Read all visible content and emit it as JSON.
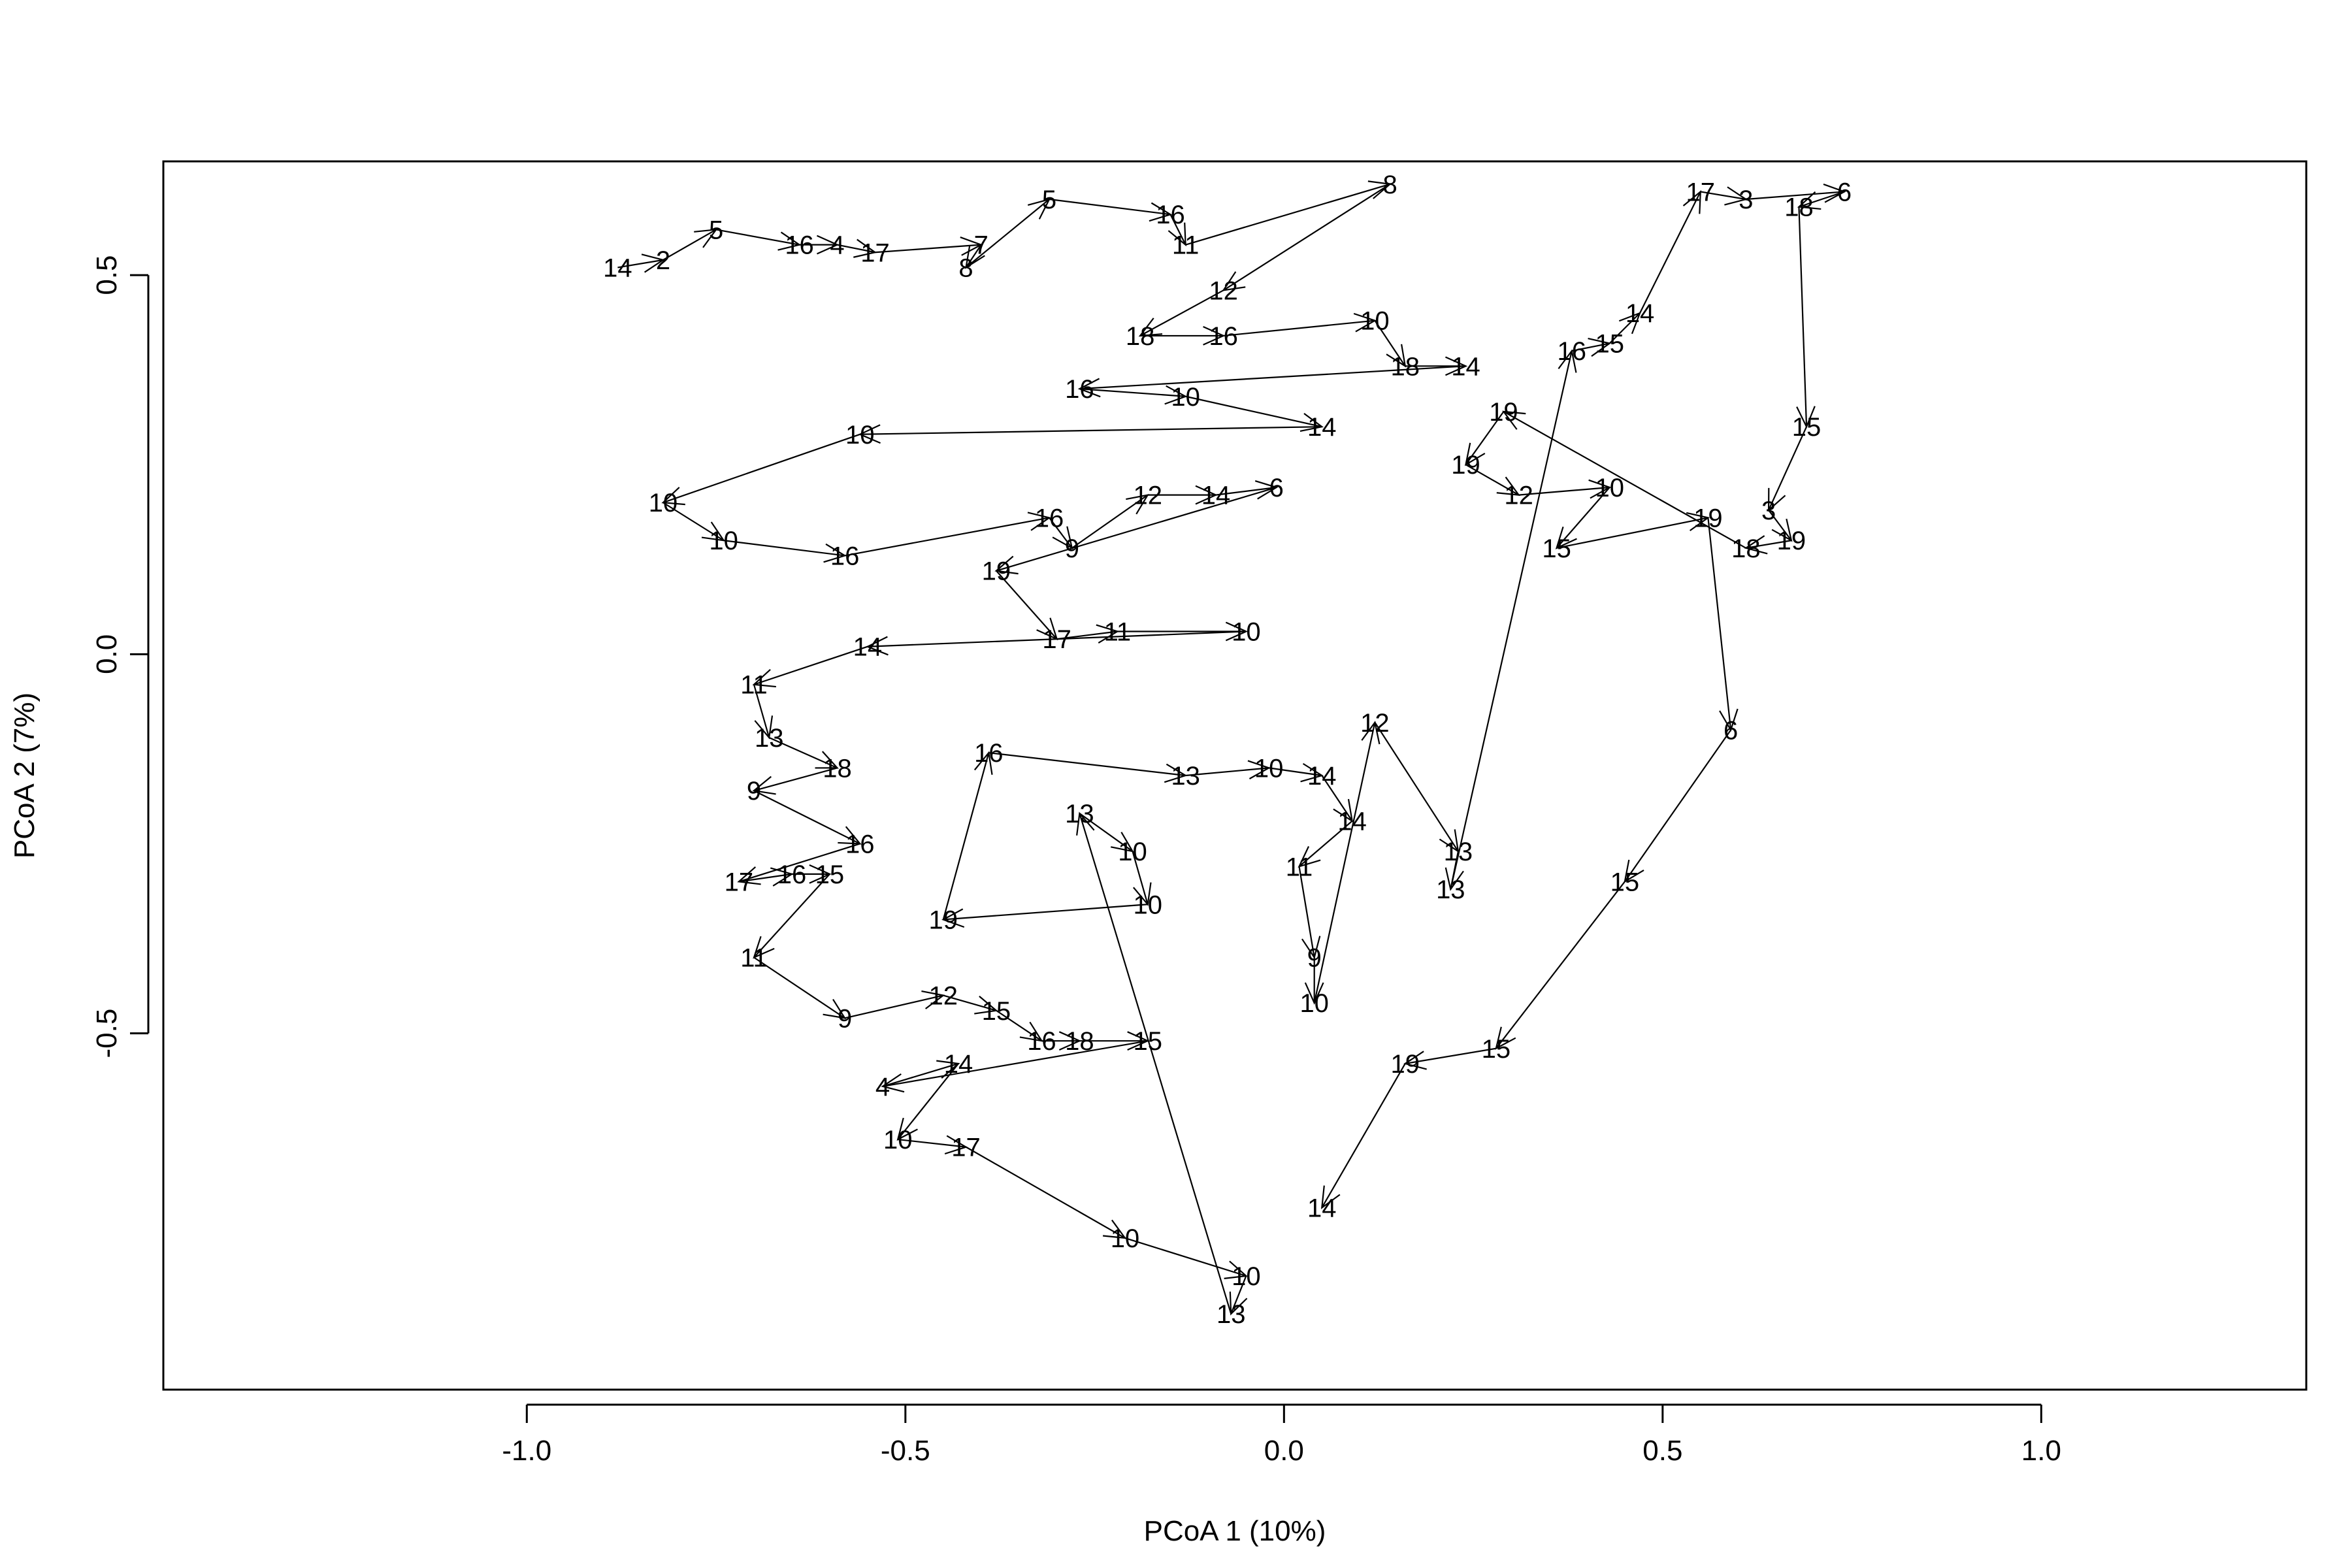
{
  "chart_data": {
    "type": "scatter",
    "title": "",
    "xlabel": "PCoA 1 (10%)",
    "ylabel": "PCoA 2 (7%)",
    "xlim": [
      -1.48,
      1.35
    ],
    "ylim": [
      -0.97,
      0.65
    ],
    "xticks": [
      -1.0,
      -0.5,
      0.0,
      0.5,
      1.0
    ],
    "xtick_labels": [
      "-1.0",
      "-0.5",
      "0.0",
      "0.5",
      "1.0"
    ],
    "yticks": [
      -0.5,
      0.0,
      0.5
    ],
    "ytick_labels": [
      "-0.5",
      "0.0",
      "0.5"
    ],
    "grid": false,
    "legend": "none",
    "marks": "sample labels joined by arrows in sequence",
    "points": [
      {
        "x": -0.88,
        "y": 0.51,
        "label": "14"
      },
      {
        "x": -0.82,
        "y": 0.52,
        "label": "2"
      },
      {
        "x": -0.75,
        "y": 0.56,
        "label": "5"
      },
      {
        "x": -0.64,
        "y": 0.54,
        "label": "16"
      },
      {
        "x": -0.59,
        "y": 0.54,
        "label": "4"
      },
      {
        "x": -0.54,
        "y": 0.53,
        "label": "17"
      },
      {
        "x": -0.4,
        "y": 0.54,
        "label": "7"
      },
      {
        "x": -0.42,
        "y": 0.51,
        "label": "8"
      },
      {
        "x": -0.31,
        "y": 0.6,
        "label": "5"
      },
      {
        "x": -0.15,
        "y": 0.58,
        "label": "16"
      },
      {
        "x": -0.13,
        "y": 0.54,
        "label": "11"
      },
      {
        "x": 0.14,
        "y": 0.62,
        "label": "8"
      },
      {
        "x": -0.08,
        "y": 0.48,
        "label": "12"
      },
      {
        "x": -0.19,
        "y": 0.42,
        "label": "18"
      },
      {
        "x": -0.08,
        "y": 0.42,
        "label": "16"
      },
      {
        "x": 0.12,
        "y": 0.44,
        "label": "10"
      },
      {
        "x": 0.16,
        "y": 0.38,
        "label": "18"
      },
      {
        "x": 0.24,
        "y": 0.38,
        "label": "14"
      },
      {
        "x": -0.27,
        "y": 0.35,
        "label": "16"
      },
      {
        "x": -0.13,
        "y": 0.34,
        "label": "10"
      },
      {
        "x": 0.05,
        "y": 0.3,
        "label": "14"
      },
      {
        "x": -0.56,
        "y": 0.29,
        "label": "10"
      },
      {
        "x": -0.82,
        "y": 0.2,
        "label": "10"
      },
      {
        "x": -0.74,
        "y": 0.15,
        "label": "10"
      },
      {
        "x": -0.58,
        "y": 0.13,
        "label": "16"
      },
      {
        "x": -0.31,
        "y": 0.18,
        "label": "16"
      },
      {
        "x": -0.28,
        "y": 0.14,
        "label": "9"
      },
      {
        "x": -0.18,
        "y": 0.21,
        "label": "12"
      },
      {
        "x": -0.09,
        "y": 0.21,
        "label": "14"
      },
      {
        "x": -0.01,
        "y": 0.22,
        "label": "6"
      },
      {
        "x": -0.38,
        "y": 0.11,
        "label": "19"
      },
      {
        "x": -0.3,
        "y": 0.02,
        "label": "17"
      },
      {
        "x": -0.22,
        "y": 0.03,
        "label": "11"
      },
      {
        "x": -0.05,
        "y": 0.03,
        "label": "10"
      },
      {
        "x": -0.55,
        "y": 0.01,
        "label": "14"
      },
      {
        "x": -0.7,
        "y": -0.04,
        "label": "11"
      },
      {
        "x": -0.68,
        "y": -0.11,
        "label": "13"
      },
      {
        "x": -0.59,
        "y": -0.15,
        "label": "18"
      },
      {
        "x": -0.7,
        "y": -0.18,
        "label": "9"
      },
      {
        "x": -0.56,
        "y": -0.25,
        "label": "16"
      },
      {
        "x": -0.72,
        "y": -0.3,
        "label": "17"
      },
      {
        "x": -0.65,
        "y": -0.29,
        "label": "16"
      },
      {
        "x": -0.6,
        "y": -0.29,
        "label": "15"
      },
      {
        "x": -0.7,
        "y": -0.4,
        "label": "11"
      },
      {
        "x": -0.58,
        "y": -0.48,
        "label": "9"
      },
      {
        "x": -0.45,
        "y": -0.45,
        "label": "12"
      },
      {
        "x": -0.38,
        "y": -0.47,
        "label": "15"
      },
      {
        "x": -0.32,
        "y": -0.51,
        "label": "16"
      },
      {
        "x": -0.27,
        "y": -0.51,
        "label": "18"
      },
      {
        "x": -0.18,
        "y": -0.51,
        "label": "15"
      },
      {
        "x": -0.53,
        "y": -0.57,
        "label": "4"
      },
      {
        "x": -0.43,
        "y": -0.54,
        "label": "14"
      },
      {
        "x": -0.51,
        "y": -0.64,
        "label": "10"
      },
      {
        "x": -0.42,
        "y": -0.65,
        "label": "17"
      },
      {
        "x": -0.21,
        "y": -0.77,
        "label": "10"
      },
      {
        "x": -0.05,
        "y": -0.82,
        "label": "10"
      },
      {
        "x": -0.07,
        "y": -0.87,
        "label": "13"
      },
      {
        "x": -0.27,
        "y": -0.21,
        "label": "13"
      },
      {
        "x": -0.2,
        "y": -0.26,
        "label": "10"
      },
      {
        "x": -0.18,
        "y": -0.33,
        "label": "10"
      },
      {
        "x": -0.45,
        "y": -0.35,
        "label": "19"
      },
      {
        "x": -0.39,
        "y": -0.13,
        "label": "16"
      },
      {
        "x": -0.13,
        "y": -0.16,
        "label": "13"
      },
      {
        "x": -0.02,
        "y": -0.15,
        "label": "10"
      },
      {
        "x": 0.05,
        "y": -0.16,
        "label": "14"
      },
      {
        "x": 0.09,
        "y": -0.22,
        "label": "14"
      },
      {
        "x": 0.02,
        "y": -0.28,
        "label": "11"
      },
      {
        "x": 0.04,
        "y": -0.4,
        "label": "9"
      },
      {
        "x": 0.04,
        "y": -0.46,
        "label": "10"
      },
      {
        "x": 0.12,
        "y": -0.09,
        "label": "12"
      },
      {
        "x": 0.23,
        "y": -0.26,
        "label": "13"
      },
      {
        "x": 0.22,
        "y": -0.31,
        "label": "13"
      },
      {
        "x": 0.38,
        "y": 0.4,
        "label": "16"
      },
      {
        "x": 0.43,
        "y": 0.41,
        "label": "15"
      },
      {
        "x": 0.47,
        "y": 0.45,
        "label": "14"
      },
      {
        "x": 0.55,
        "y": 0.61,
        "label": "17"
      },
      {
        "x": 0.61,
        "y": 0.6,
        "label": "3"
      },
      {
        "x": 0.74,
        "y": 0.61,
        "label": "6"
      },
      {
        "x": 0.68,
        "y": 0.59,
        "label": "18"
      },
      {
        "x": 0.69,
        "y": 0.3,
        "label": "15"
      },
      {
        "x": 0.64,
        "y": 0.19,
        "label": "3"
      },
      {
        "x": 0.67,
        "y": 0.15,
        "label": "19"
      },
      {
        "x": 0.61,
        "y": 0.14,
        "label": "18"
      },
      {
        "x": 0.29,
        "y": 0.32,
        "label": "19"
      },
      {
        "x": 0.24,
        "y": 0.25,
        "label": "19"
      },
      {
        "x": 0.31,
        "y": 0.21,
        "label": "12"
      },
      {
        "x": 0.43,
        "y": 0.22,
        "label": "10"
      },
      {
        "x": 0.36,
        "y": 0.14,
        "label": "15"
      },
      {
        "x": 0.56,
        "y": 0.18,
        "label": "19"
      },
      {
        "x": 0.59,
        "y": -0.1,
        "label": "6"
      },
      {
        "x": 0.45,
        "y": -0.3,
        "label": "15"
      },
      {
        "x": 0.28,
        "y": -0.52,
        "label": "15"
      },
      {
        "x": 0.16,
        "y": -0.54,
        "label": "19"
      },
      {
        "x": 0.05,
        "y": -0.73,
        "label": "14"
      }
    ]
  }
}
